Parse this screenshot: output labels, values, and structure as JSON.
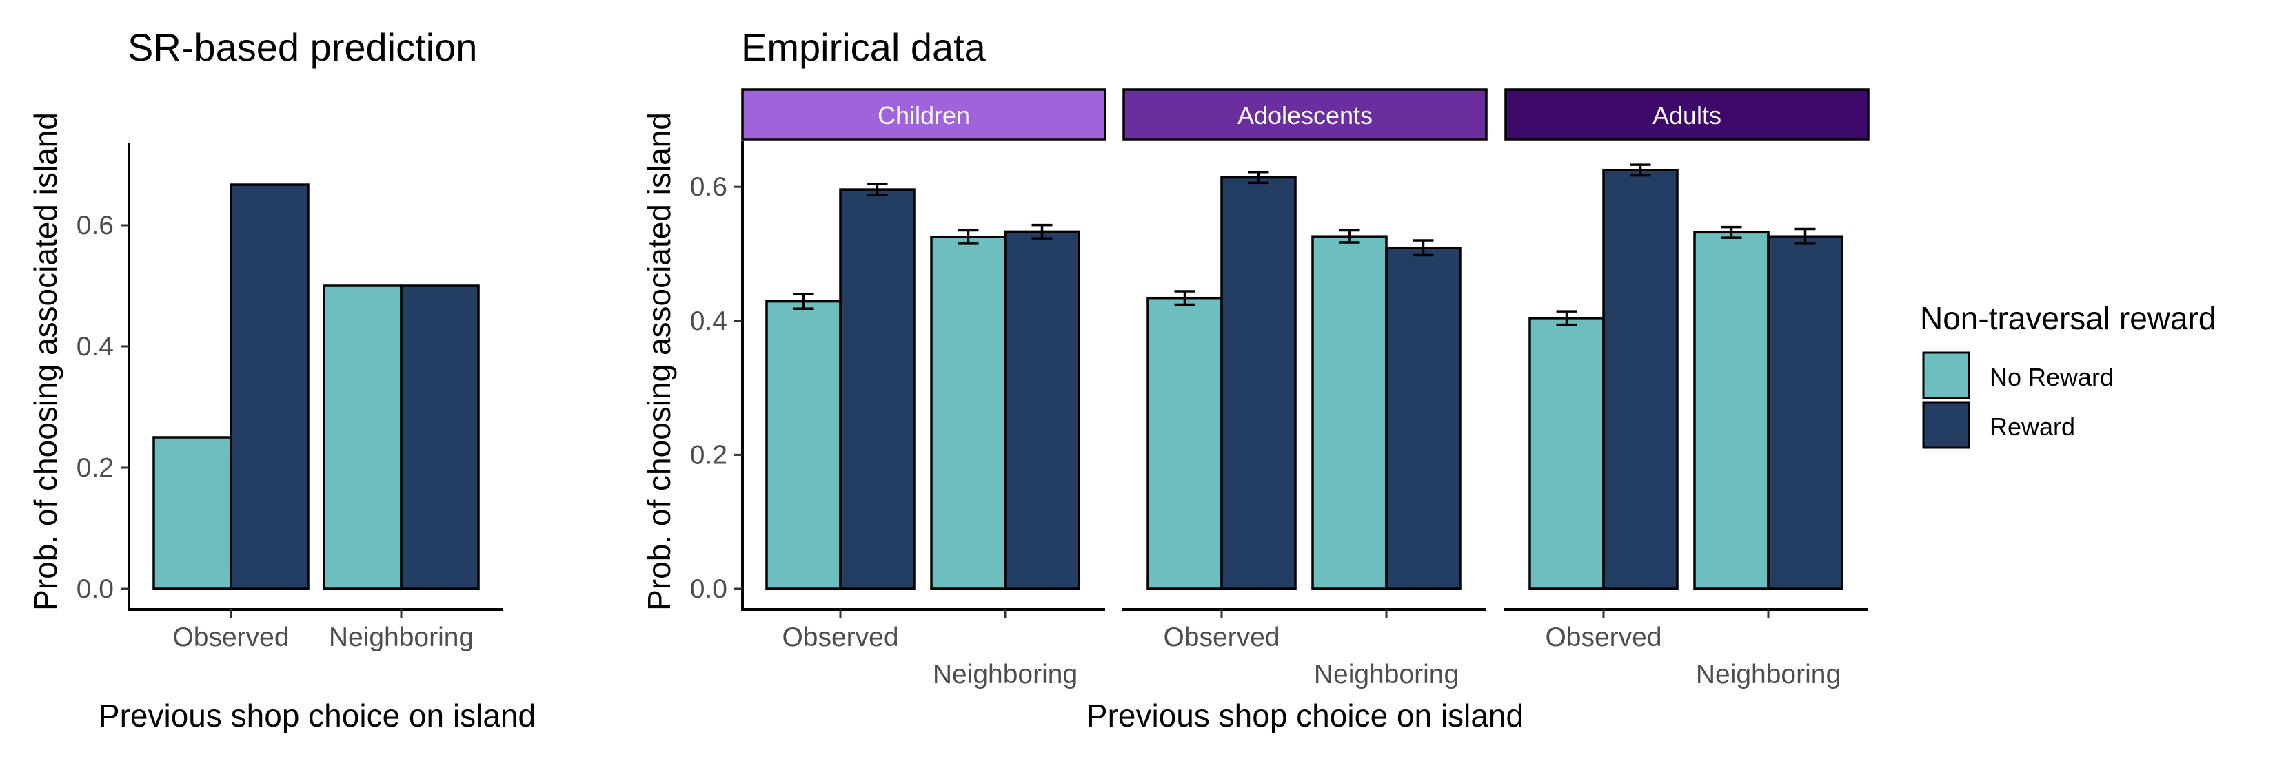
{
  "chart_data": [
    {
      "type": "bar",
      "title": "SR-based prediction",
      "xlabel": "Previous shop choice on island",
      "ylabel": "Prob. of choosing associated island",
      "ylim": [
        0,
        0.74
      ],
      "yticks": [
        "0.0",
        "0.2",
        "0.4",
        "0.6"
      ],
      "categories": [
        "Observed",
        "Neighboring"
      ],
      "series": [
        {
          "name": "No Reward",
          "values": [
            0.25,
            0.5
          ]
        },
        {
          "name": "Reward",
          "values": [
            0.667,
            0.5
          ]
        }
      ]
    },
    {
      "type": "bar",
      "title": "Empirical data",
      "xlabel": "Previous shop choice on island",
      "ylabel": "Prob. of choosing associated island",
      "ylim": [
        0,
        0.67
      ],
      "yticks": [
        "0.0",
        "0.2",
        "0.4",
        "0.6"
      ],
      "categories": [
        "Observed",
        "Neighboring"
      ],
      "facets": [
        {
          "label": "Children",
          "strip_color": "#a163dc",
          "series": [
            {
              "name": "No Reward",
              "values": [
                0.429,
                0.525
              ],
              "errors": [
                0.011,
                0.01
              ]
            },
            {
              "name": "Reward",
              "values": [
                0.596,
                0.533
              ],
              "errors": [
                0.008,
                0.01
              ]
            }
          ]
        },
        {
          "label": "Adolescents",
          "strip_color": "#6a2e9f",
          "series": [
            {
              "name": "No Reward",
              "values": [
                0.434,
                0.526
              ],
              "errors": [
                0.01,
                0.009
              ]
            },
            {
              "name": "Reward",
              "values": [
                0.614,
                0.509
              ],
              "errors": [
                0.008,
                0.011
              ]
            }
          ]
        },
        {
          "label": "Adults",
          "strip_color": "#3d0a6c",
          "series": [
            {
              "name": "No Reward",
              "values": [
                0.404,
                0.532
              ],
              "errors": [
                0.01,
                0.008
              ]
            },
            {
              "name": "Reward",
              "values": [
                0.625,
                0.526
              ],
              "errors": [
                0.008,
                0.011
              ]
            }
          ]
        }
      ]
    }
  ],
  "legend": {
    "title": "Non-traversal reward",
    "items": [
      {
        "label": "No Reward",
        "color": "#6dbfbf"
      },
      {
        "label": "Reward",
        "color": "#243e63"
      }
    ]
  }
}
